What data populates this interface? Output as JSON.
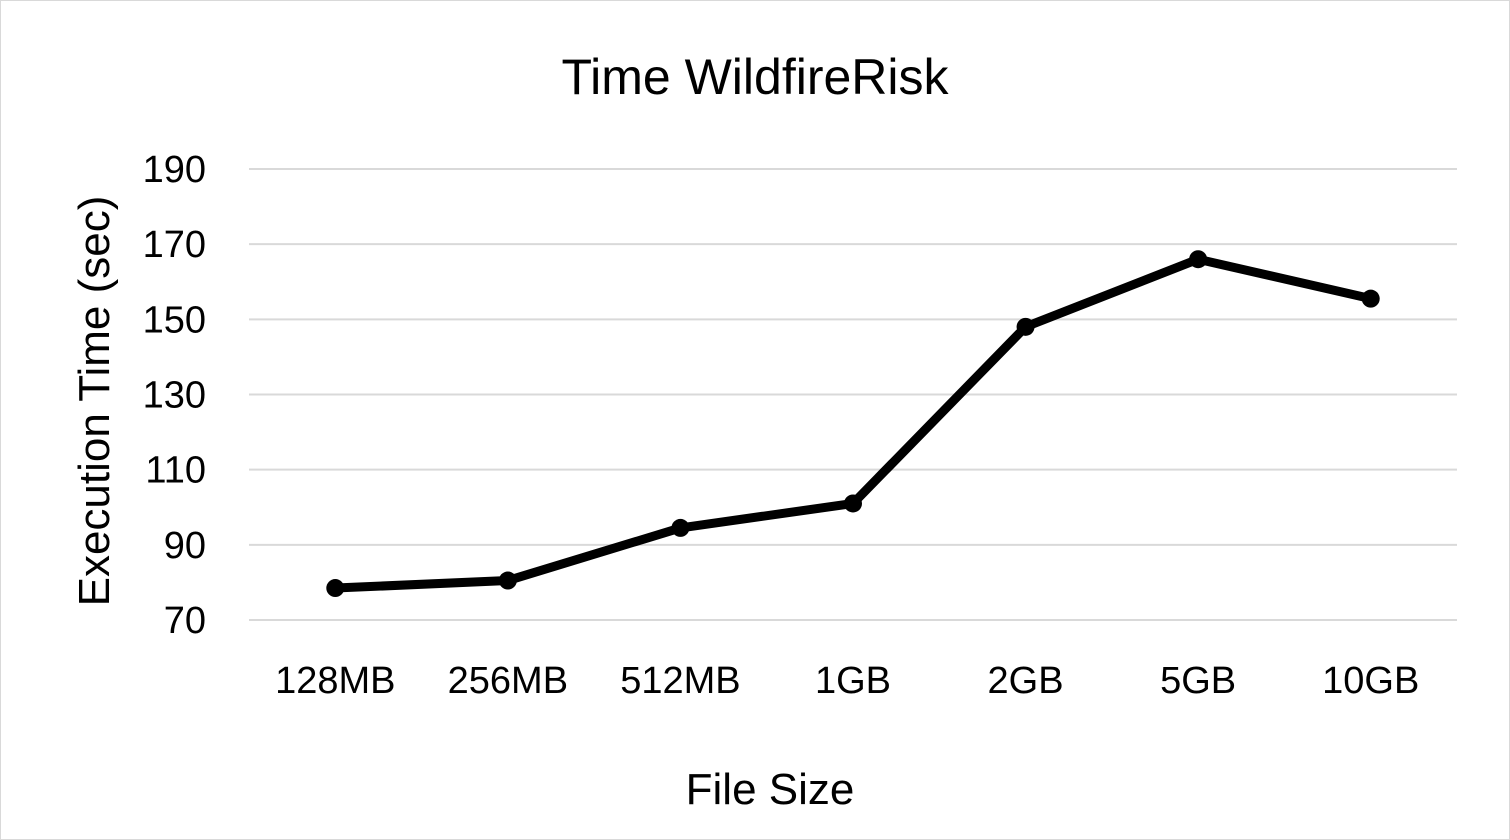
{
  "chart_data": {
    "type": "line",
    "title": "Time WildfireRisk",
    "xlabel": "File Size",
    "ylabel": "Execution Time (sec)",
    "categories": [
      "128MB",
      "256MB",
      "512MB",
      "1GB",
      "2GB",
      "5GB",
      "10GB"
    ],
    "series": [
      {
        "values": [
          78.5,
          80.5,
          94.5,
          101,
          148,
          166,
          155.5
        ],
        "color": "#000000"
      }
    ],
    "ylim": [
      70,
      190
    ],
    "yticks": [
      70,
      90,
      110,
      130,
      150,
      170,
      190
    ],
    "grid": true,
    "legend": "none"
  }
}
